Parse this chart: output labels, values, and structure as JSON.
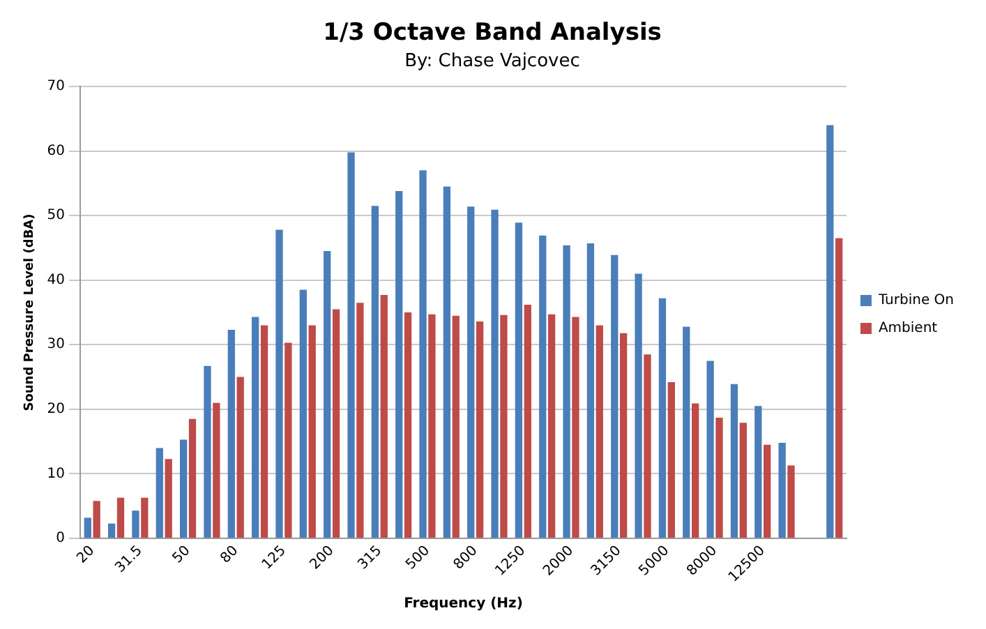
{
  "chart_data": {
    "type": "bar",
    "title": "1/3 Octave Band Analysis",
    "subtitle": "By: Chase Vajcovec",
    "xlabel": "Frequency (Hz)",
    "ylabel": "Sound Pressure Level (dBA)",
    "categories": [
      "20",
      null,
      "31.5",
      null,
      "50",
      null,
      "80",
      null,
      "125",
      null,
      "200",
      null,
      "315",
      null,
      "500",
      null,
      "800",
      null,
      "1250",
      null,
      "2000",
      null,
      "3150",
      null,
      "5000",
      null,
      "8000",
      null,
      "12500",
      null,
      null,
      null
    ],
    "series": [
      {
        "name": "Turbine On",
        "color": "#4a7ebb",
        "values": [
          3.2,
          2.3,
          4.3,
          14,
          15.3,
          26.7,
          32.3,
          34.3,
          47.8,
          38.5,
          44.5,
          59.8,
          51.5,
          53.8,
          57,
          54.5,
          51.4,
          50.9,
          48.9,
          46.9,
          45.4,
          45.7,
          43.9,
          41,
          37.2,
          32.8,
          27.5,
          23.9,
          20.5,
          14.8,
          null,
          64
        ]
      },
      {
        "name": "Ambient",
        "color": "#be4b48",
        "values": [
          5.8,
          6.3,
          6.3,
          12.3,
          18.5,
          21,
          25,
          33,
          30.3,
          33,
          35.5,
          36.5,
          37.7,
          35,
          34.7,
          34.5,
          33.6,
          34.6,
          36.2,
          34.7,
          34.3,
          33,
          31.8,
          28.5,
          24.2,
          20.9,
          18.7,
          17.9,
          14.5,
          11.3,
          null,
          46.5
        ]
      }
    ],
    "ylim": [
      0,
      70
    ],
    "yticks": [
      0,
      10,
      20,
      30,
      40,
      50,
      60,
      70
    ],
    "grid": "y",
    "legend": "right"
  }
}
